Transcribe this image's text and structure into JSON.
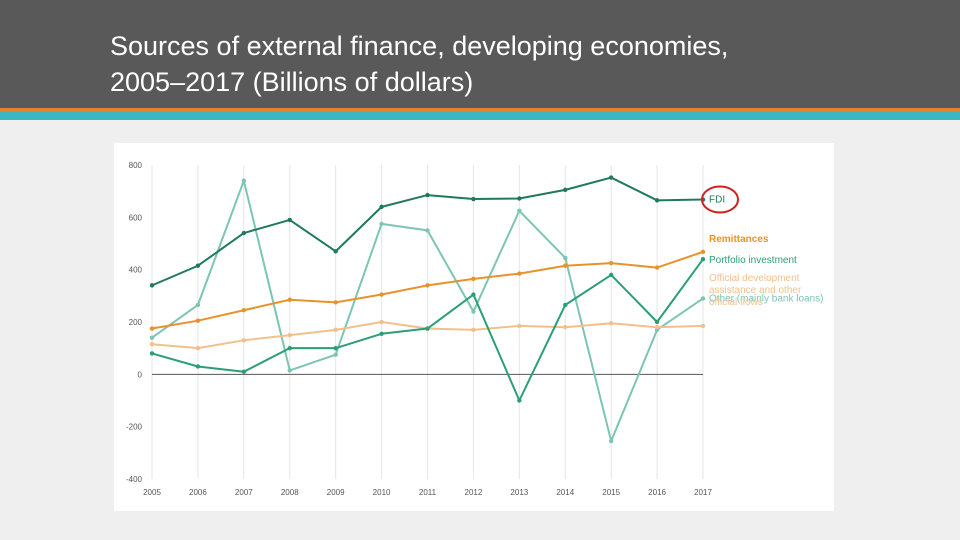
{
  "slide": {
    "title_line1": "Sources of external finance, developing economies,",
    "title_line2": "2005–2017 (Billions of dollars)"
  },
  "colors": {
    "header_bg": "#595959",
    "accent_orange": "#e8822a",
    "accent_teal": "#3cb6c1",
    "highlight_circle": "#cc2222"
  },
  "chart_data": {
    "type": "line",
    "title": "",
    "xlabel": "",
    "ylabel": "",
    "x": [
      "2005",
      "2006",
      "2007",
      "2008",
      "2009",
      "2010",
      "2011",
      "2012",
      "2013",
      "2014",
      "2015",
      "2016",
      "2017"
    ],
    "ylim": [
      -400,
      800
    ],
    "yticks": [
      -400,
      -200,
      0,
      200,
      400,
      600,
      800
    ],
    "grid": "vertical",
    "legend_position": "right (end-of-line labels)",
    "highlighted_series": "FDI",
    "series": [
      {
        "name": "FDI",
        "color": "#1e7a5c",
        "label_lines": [
          "FDI"
        ],
        "values": [
          340,
          415,
          540,
          590,
          470,
          640,
          685,
          670,
          672,
          705,
          752,
          665,
          668
        ]
      },
      {
        "name": "Remittances",
        "color": "#e8922c",
        "label_lines": [
          "Remittances"
        ],
        "values": [
          175,
          205,
          245,
          285,
          275,
          305,
          340,
          365,
          385,
          415,
          425,
          408,
          468
        ]
      },
      {
        "name": "Portfolio investment",
        "color": "#2b9e78",
        "label_lines": [
          "Portfolio investment"
        ],
        "values": [
          80,
          30,
          10,
          100,
          100,
          155,
          175,
          305,
          -100,
          265,
          380,
          200,
          440
        ]
      },
      {
        "name": "Other (mainly bank loans)",
        "color": "#7cc5b5",
        "label_lines": [
          "Other (mainly bank loans)"
        ],
        "values": [
          140,
          265,
          740,
          15,
          75,
          575,
          550,
          240,
          625,
          445,
          -255,
          170,
          290
        ]
      },
      {
        "name": "Official development assistance and other official flows",
        "color": "#f2c08c",
        "label_lines": [
          "Official development",
          "assistance and other",
          "official flows"
        ],
        "values": [
          115,
          100,
          130,
          150,
          170,
          200,
          175,
          170,
          185,
          180,
          195,
          180,
          185
        ]
      }
    ]
  }
}
